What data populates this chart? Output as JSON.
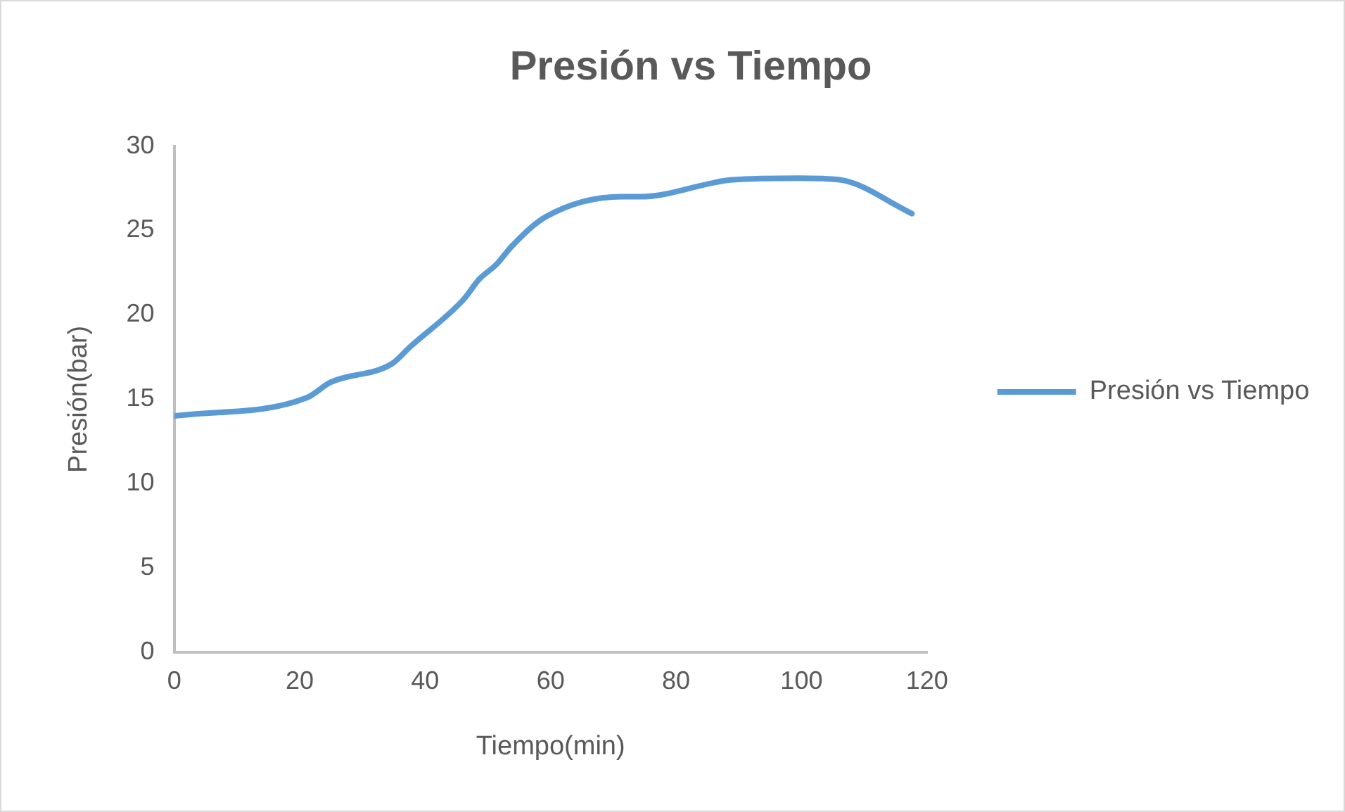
{
  "chart_data": {
    "type": "line",
    "title": "Presión vs Tiempo",
    "xlabel": "Tiempo(min)",
    "ylabel": "Presión(bar)",
    "x": [
      0,
      21.2,
      24.9,
      34.7,
      37.6,
      46.1,
      48.6,
      51.4,
      53.9,
      59.2,
      71.4,
      74.3,
      89,
      99.6,
      106.1,
      117.6
    ],
    "series": [
      {
        "name": "Presión vs Tiempo",
        "color": "#5b9bd5",
        "values": [
          14.0,
          15.1,
          16.0,
          17.1,
          18.1,
          20.9,
          22.1,
          23.0,
          24.1,
          25.8,
          27.0,
          27.0,
          28.0,
          28.1,
          28.0,
          26.0
        ]
      }
    ],
    "xlim": [
      0,
      120
    ],
    "xticks": [
      0,
      20,
      40,
      60,
      80,
      100,
      120
    ],
    "ylim": [
      0,
      30
    ],
    "yticks": [
      0,
      5,
      10,
      15,
      20,
      25,
      30
    ],
    "grid": false,
    "legend": "right",
    "marker": "none",
    "line_style": "solid"
  }
}
